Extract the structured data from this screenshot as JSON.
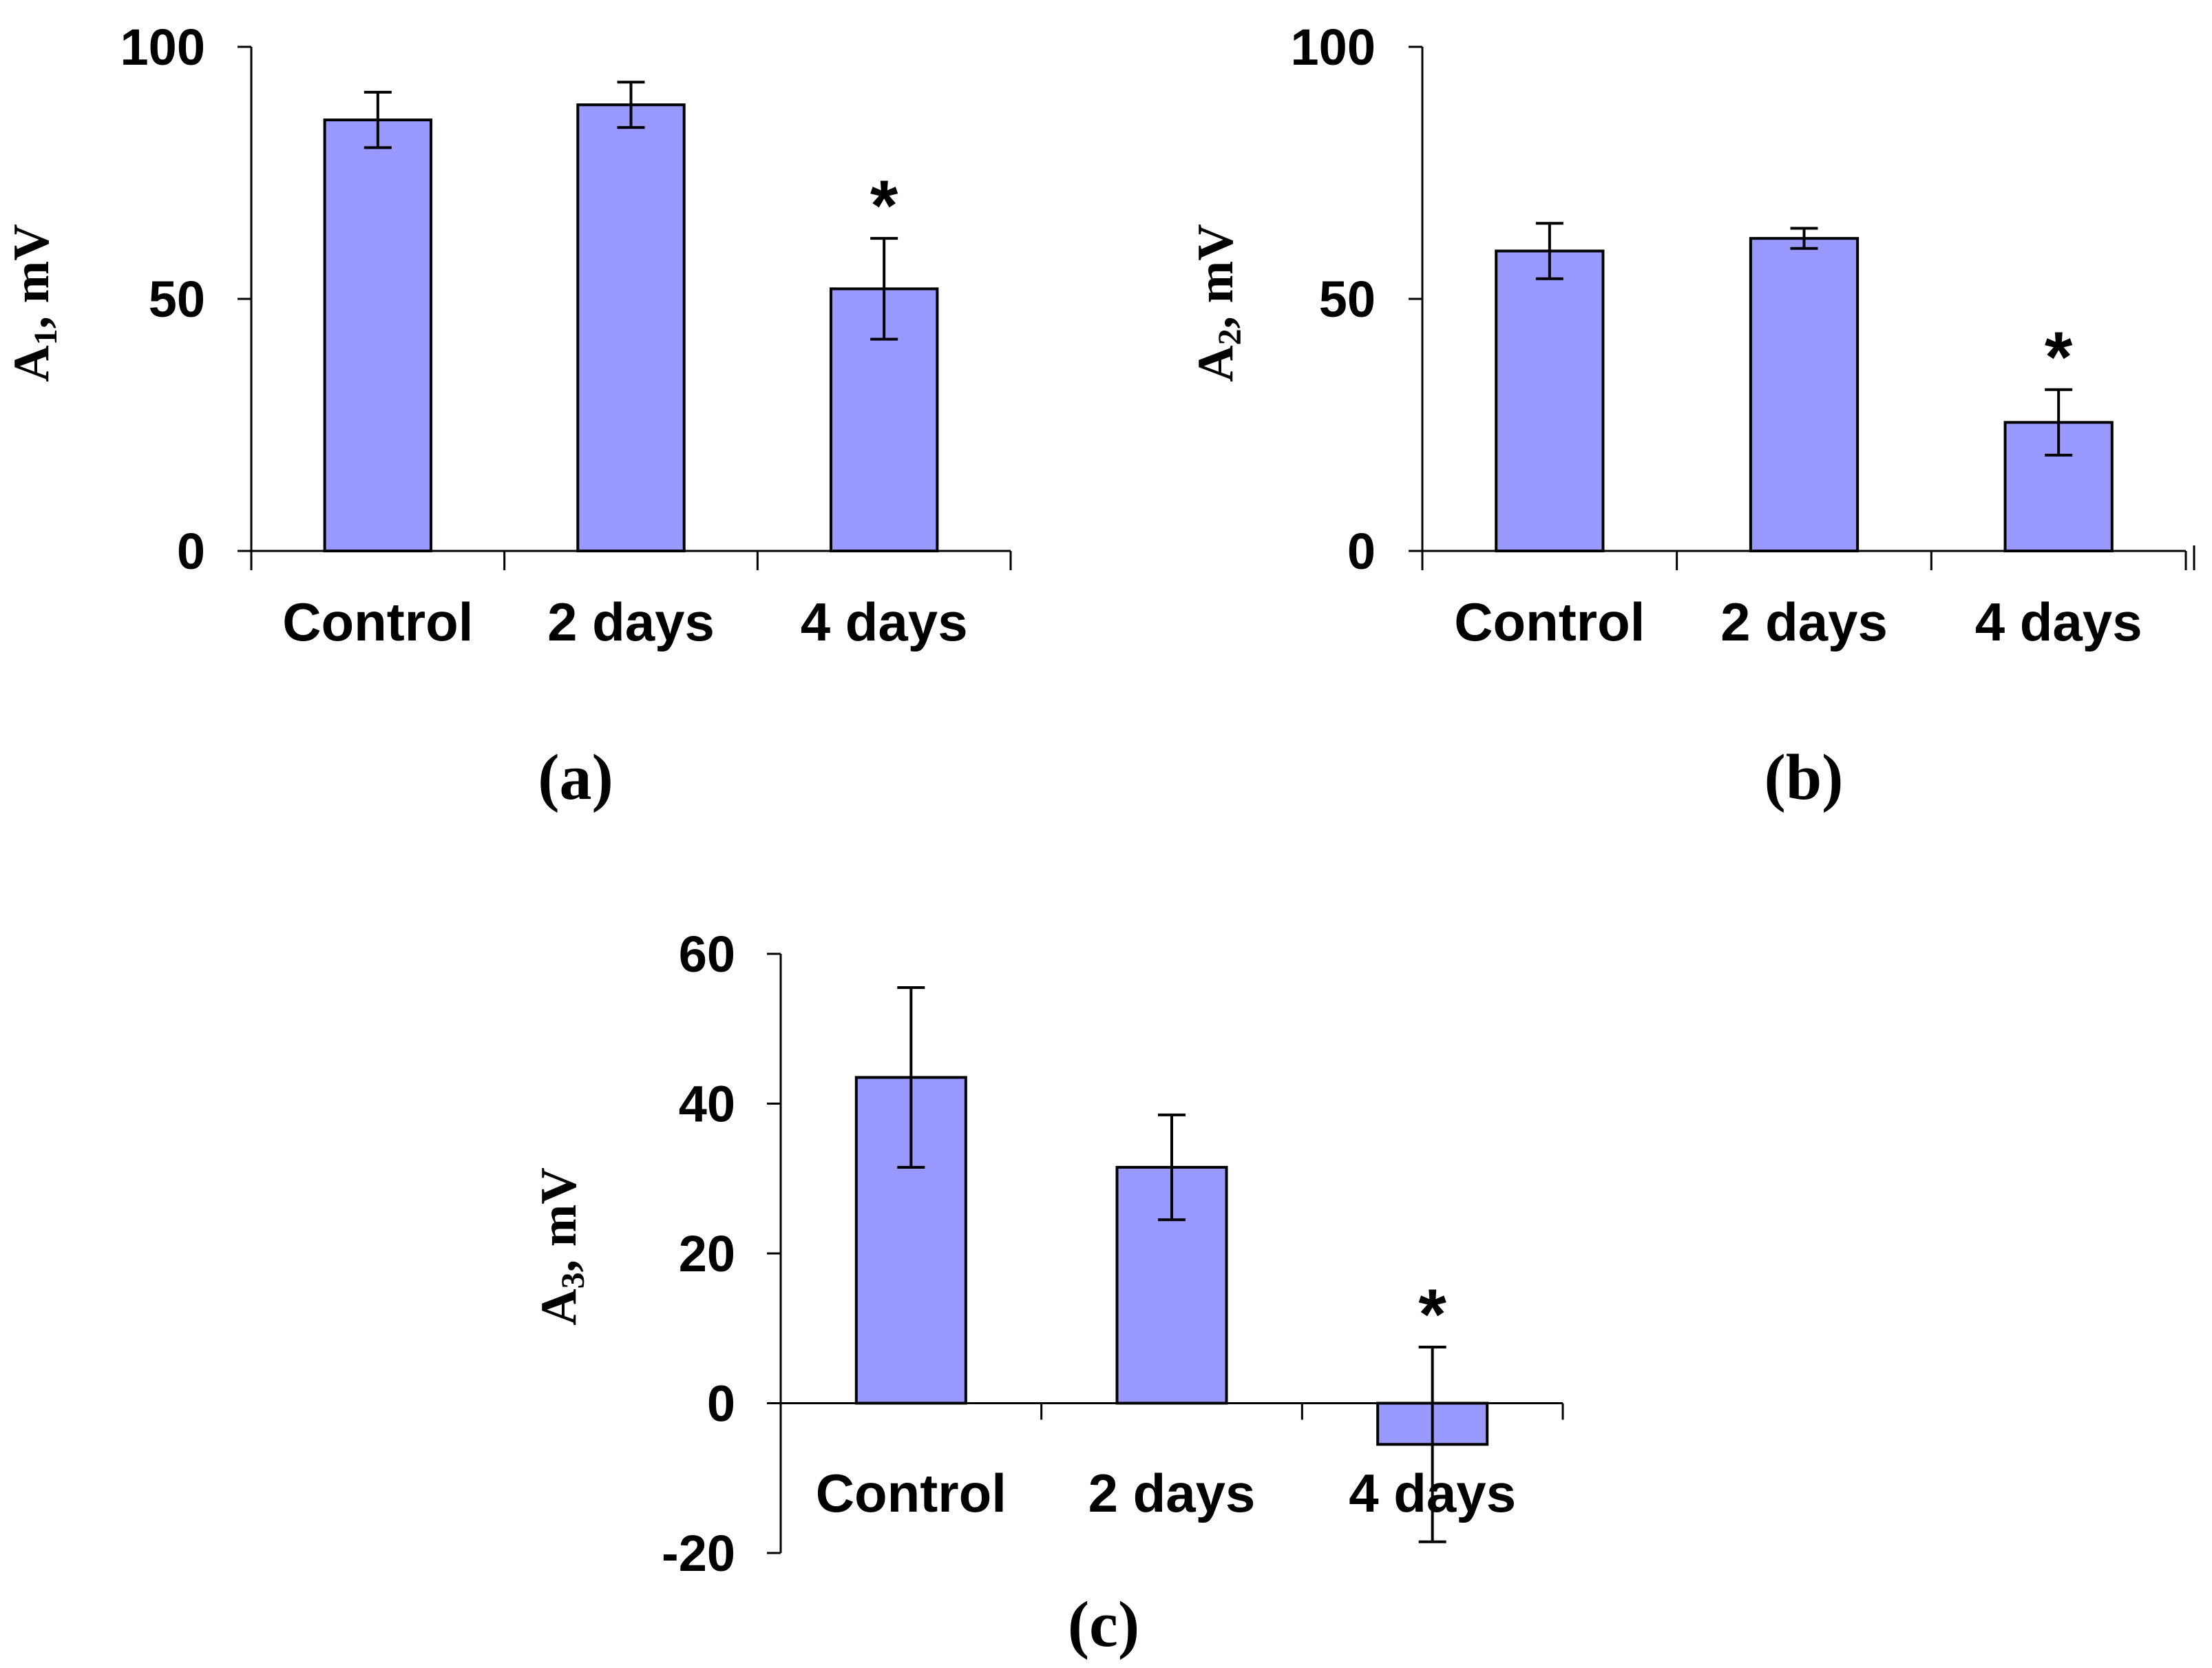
{
  "colors": {
    "bar_fill": "#9999ff",
    "bar_stroke": "#000000",
    "axis": "#000000"
  },
  "chart_data": [
    {
      "type": "bar",
      "panel_label": "(a)",
      "ylabel_main": "A",
      "ylabel_sub": "1",
      "ylabel_rest": ", mV",
      "ylim": [
        0,
        100
      ],
      "yticks": [
        0,
        50,
        100
      ],
      "categories": [
        "Control",
        "2 days",
        "4 days"
      ],
      "values": [
        85.5,
        88.5,
        52
      ],
      "errors": [
        5.5,
        4.5,
        10
      ],
      "annotations": [
        "",
        "",
        "*"
      ]
    },
    {
      "type": "bar",
      "panel_label": "(b)",
      "ylabel_main": "A",
      "ylabel_sub": "2",
      "ylabel_rest": ", mV",
      "ylim": [
        0,
        100
      ],
      "yticks": [
        0,
        50,
        100
      ],
      "categories": [
        "Control",
        "2 days",
        "4 days"
      ],
      "values": [
        59.5,
        62,
        25.5
      ],
      "errors": [
        5.5,
        2,
        6.5
      ],
      "annotations": [
        "",
        "",
        "*"
      ]
    },
    {
      "type": "bar",
      "panel_label": "(c)",
      "ylabel_main": "A",
      "ylabel_sub": "3",
      "ylabel_rest": ", mV",
      "ylim": [
        -20,
        60
      ],
      "yticks": [
        -20,
        0,
        20,
        40,
        60
      ],
      "categories": [
        "Control",
        "2 days",
        "4 days"
      ],
      "values": [
        43.5,
        31.5,
        -5.5
      ],
      "errors": [
        12,
        7,
        13
      ],
      "annotations": [
        "",
        "",
        "*"
      ]
    }
  ]
}
